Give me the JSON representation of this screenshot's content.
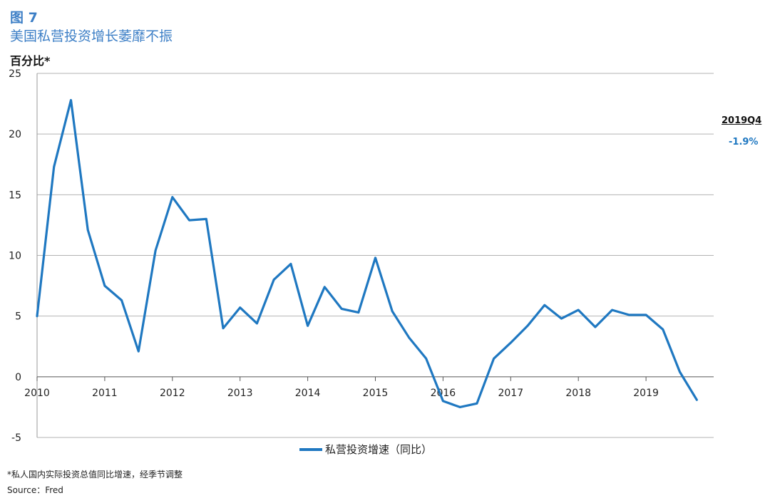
{
  "header": {
    "figure_label": "图 7",
    "title": "美国私营投资增长萎靡不振",
    "unit": "百分比*"
  },
  "callout": {
    "period": "2019Q4",
    "value": "-1.9%"
  },
  "footer": {
    "footnote": "*私人国内实际投资总值同比增速，经季节调整",
    "source": "Source：Fred"
  },
  "colors": {
    "series": "#1f78c1",
    "title": "#3d7fc6",
    "grid": "#b3b3b3"
  },
  "chart_data": {
    "type": "line",
    "title": "美国私营投资增长萎靡不振",
    "ylabel": "百分比*",
    "ylim": [
      -5,
      25
    ],
    "yticks": [
      -5,
      0,
      5,
      10,
      15,
      20,
      25
    ],
    "xlim": [
      2010,
      2020
    ],
    "xticks": [
      "2010",
      "2011",
      "2012",
      "2013",
      "2014",
      "2015",
      "2016",
      "2017",
      "2018",
      "2019"
    ],
    "grid": "horizontal",
    "legend": "bottom",
    "series": [
      {
        "name": "私营投资增速（同比）",
        "x": [
          2010.0,
          2010.25,
          2010.5,
          2010.75,
          2011.0,
          2011.25,
          2011.5,
          2011.75,
          2012.0,
          2012.25,
          2012.5,
          2012.75,
          2013.0,
          2013.25,
          2013.5,
          2013.75,
          2014.0,
          2014.25,
          2014.5,
          2014.75,
          2015.0,
          2015.25,
          2015.5,
          2015.75,
          2016.0,
          2016.25,
          2016.5,
          2016.75,
          2017.0,
          2017.25,
          2017.5,
          2017.75,
          2018.0,
          2018.25,
          2018.5,
          2018.75,
          2019.0,
          2019.25,
          2019.5,
          2019.75
        ],
        "values": [
          5.0,
          17.3,
          22.8,
          12.1,
          7.5,
          6.3,
          2.1,
          10.4,
          14.8,
          12.9,
          13.0,
          4.0,
          5.7,
          4.4,
          8.0,
          9.3,
          4.2,
          7.4,
          5.6,
          5.3,
          9.8,
          5.4,
          3.2,
          1.5,
          -2.0,
          -2.5,
          -2.2,
          1.5,
          2.8,
          4.2,
          5.9,
          4.8,
          5.5,
          4.1,
          5.5,
          5.1,
          5.1,
          3.9,
          0.4,
          -1.9
        ]
      }
    ]
  }
}
